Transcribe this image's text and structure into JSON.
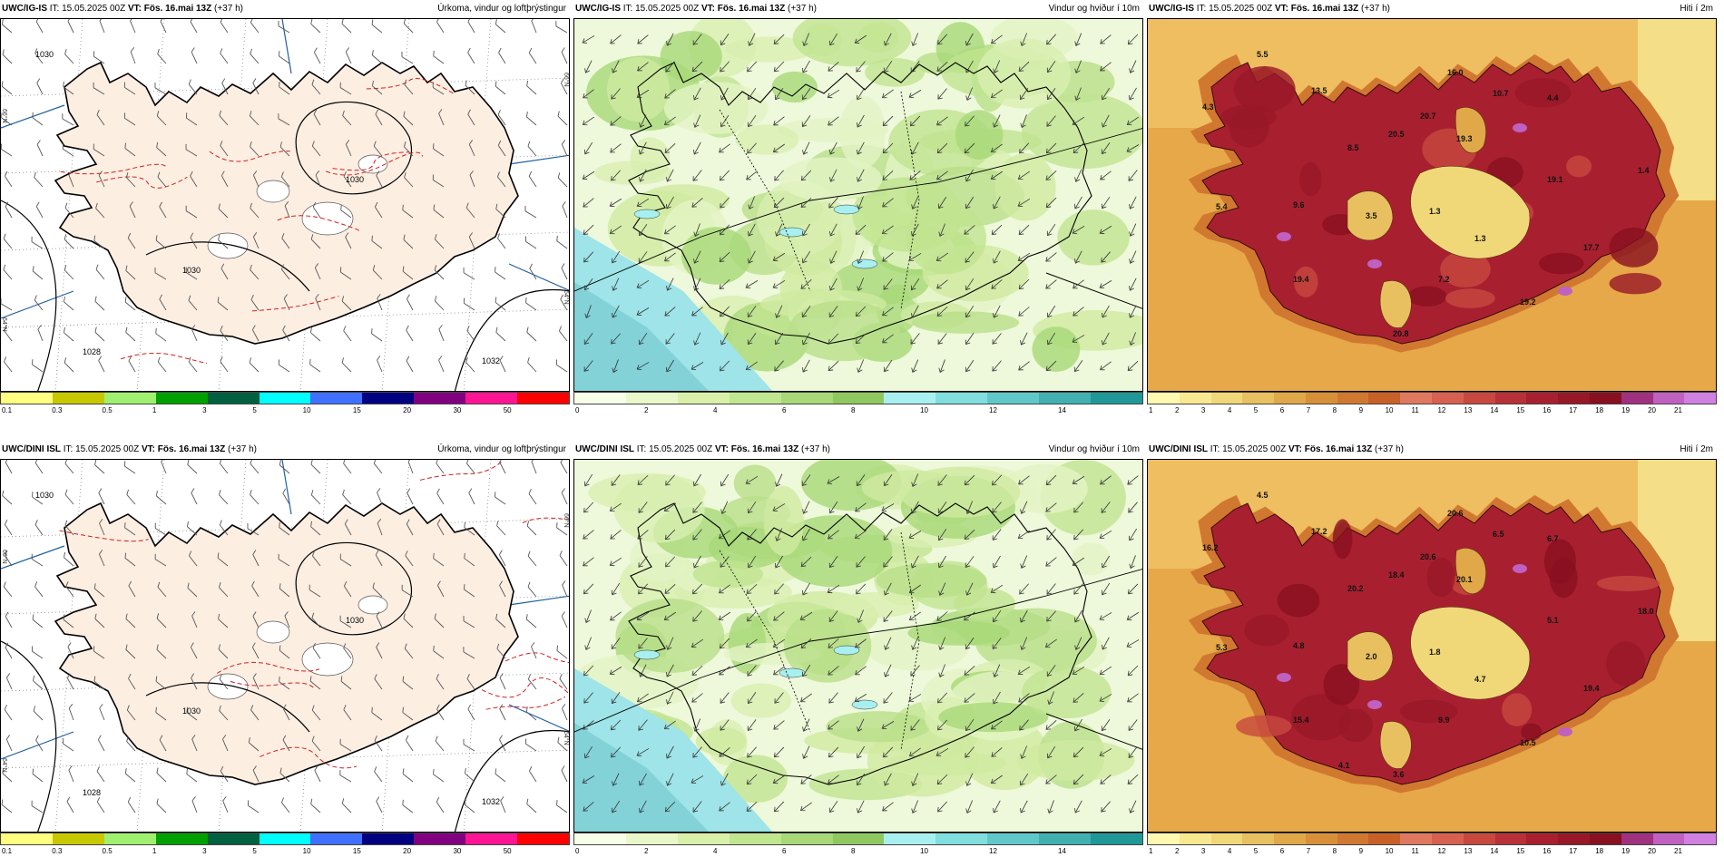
{
  "panels": [
    {
      "model": "UWC/IG-IS",
      "it": "IT: 15.05.2025 00Z",
      "vt_label": "VT:",
      "vt": "Fös. 16.mai 13Z",
      "lead": "(+37 h)",
      "title": "Úrkoma, vindur og loftþrýstingur",
      "kind": "precip",
      "colorbar": {
        "colors": [
          "#ffff80",
          "#c8c800",
          "#a0f070",
          "#00a000",
          "#006040",
          "#00ffff",
          "#4070ff",
          "#000080",
          "#800080",
          "#ff1493",
          "#ff0000"
        ],
        "ticks": [
          "0.1",
          "0.3",
          "0.5",
          "1",
          "3",
          "5",
          "10",
          "15",
          "20",
          "30",
          "50"
        ]
      },
      "pressure_labels": [
        "1030",
        "1030",
        "1030",
        "1028",
        "1032"
      ],
      "side_labels": [
        "66°N",
        "64°N",
        "66°N",
        "64°N"
      ]
    },
    {
      "model": "UWC/IG-IS",
      "it": "IT: 15.05.2025 00Z",
      "vt_label": "VT:",
      "vt": "Fös. 16.mai 13Z",
      "lead": "(+37 h)",
      "title": "Vindur og hviður í 10m",
      "kind": "wind",
      "colorbar": {
        "colors": [
          "#f8ffe8",
          "#e8f8c8",
          "#d8f0a8",
          "#c0e690",
          "#a8d878",
          "#90c860",
          "#a8f0f0",
          "#80dede",
          "#60c8c8",
          "#40b0b0",
          "#209898"
        ],
        "ticks": [
          "0",
          "2",
          "4",
          "6",
          "8",
          "10",
          "12",
          "14"
        ]
      }
    },
    {
      "model": "UWC/IG-IS",
      "it": "IT: 15.05.2025 00Z",
      "vt_label": "VT:",
      "vt": "Fös. 16.mai 13Z",
      "lead": "(+37 h)",
      "title": "Hiti í 2m",
      "kind": "temp",
      "colorbar": {
        "colors": [
          "#fff8b0",
          "#f8e890",
          "#f0d878",
          "#e8c060",
          "#e0a848",
          "#d89038",
          "#d07830",
          "#c86028",
          "#e07860",
          "#d86050",
          "#c84840",
          "#b83038",
          "#a82030",
          "#981828",
          "#881020",
          "#a03080",
          "#c060c0",
          "#d080e0"
        ],
        "ticks": [
          "1",
          "2",
          "3",
          "4",
          "5",
          "6",
          "7",
          "8",
          "9",
          "10",
          "11",
          "12",
          "13",
          "14",
          "15",
          "16",
          "17",
          "18",
          "19",
          "20",
          "21"
        ]
      },
      "temp_labels": [
        "5.5",
        "4.3",
        "13.5",
        "16.0",
        "10.7",
        "4.4",
        "20.7",
        "19.3",
        "8.5",
        "20.5",
        "19.1",
        "1.4",
        "5.4",
        "9.6",
        "3.5",
        "1.3",
        "1.3",
        "17.7",
        "19.4",
        "7.2",
        "19.2",
        "20.8"
      ]
    },
    {
      "model": "UWC/DINI ISL",
      "it": "IT: 15.05.2025 00Z",
      "vt_label": "VT:",
      "vt": "Fös. 16.mai 13Z",
      "lead": "(+37 h)",
      "title": "Úrkoma, vindur og loftþrýstingur",
      "kind": "precip",
      "colorbar": {
        "colors": [
          "#ffff80",
          "#c8c800",
          "#a0f070",
          "#00a000",
          "#006040",
          "#00ffff",
          "#4070ff",
          "#000080",
          "#800080",
          "#ff1493",
          "#ff0000"
        ],
        "ticks": [
          "0.1",
          "0.3",
          "0.5",
          "1",
          "3",
          "5",
          "10",
          "15",
          "20",
          "30",
          "50"
        ]
      },
      "pressure_labels": [
        "1030",
        "1030",
        "1030",
        "1028",
        "1032"
      ],
      "side_labels": [
        "66°N",
        "64°N",
        "66°N",
        "64°N"
      ]
    },
    {
      "model": "UWC/DINI ISL",
      "it": "IT: 15.05.2025 00Z",
      "vt_label": "VT:",
      "vt": "Fös. 16.mai 13Z",
      "lead": "(+37 h)",
      "title": "Vindur og hviður í 10m",
      "kind": "wind",
      "colorbar": {
        "colors": [
          "#f8ffe8",
          "#e8f8c8",
          "#d8f0a8",
          "#c0e690",
          "#a8d878",
          "#90c860",
          "#a8f0f0",
          "#80dede",
          "#60c8c8",
          "#40b0b0",
          "#209898"
        ],
        "ticks": [
          "0",
          "2",
          "4",
          "6",
          "8",
          "10",
          "12",
          "14"
        ]
      }
    },
    {
      "model": "UWC/DINI ISL",
      "it": "IT: 15.05.2025 00Z",
      "vt_label": "VT:",
      "vt": "Fös. 16.mai 13Z",
      "lead": "(+37 h)",
      "title": "Hiti í 2m",
      "kind": "temp",
      "colorbar": {
        "colors": [
          "#fff8b0",
          "#f8e890",
          "#f0d878",
          "#e8c060",
          "#e0a848",
          "#d89038",
          "#d07830",
          "#c86028",
          "#e07860",
          "#d86050",
          "#c84840",
          "#b83038",
          "#a82030",
          "#981828",
          "#881020",
          "#a03080",
          "#c060c0",
          "#d080e0"
        ],
        "ticks": [
          "1",
          "2",
          "3",
          "4",
          "5",
          "6",
          "7",
          "8",
          "9",
          "10",
          "11",
          "12",
          "13",
          "14",
          "15",
          "16",
          "17",
          "18",
          "19",
          "20",
          "21"
        ]
      },
      "temp_labels": [
        "4.5",
        "16.2",
        "17.2",
        "20.6",
        "6.5",
        "6.7",
        "20.6",
        "20.1",
        "20.2",
        "18.4",
        "5.1",
        "18.0",
        "5.3",
        "4.8",
        "2.0",
        "1.8",
        "4.7",
        "19.4",
        "15.4",
        "9.9",
        "10.5",
        "3.6",
        "4.1"
      ]
    }
  ]
}
